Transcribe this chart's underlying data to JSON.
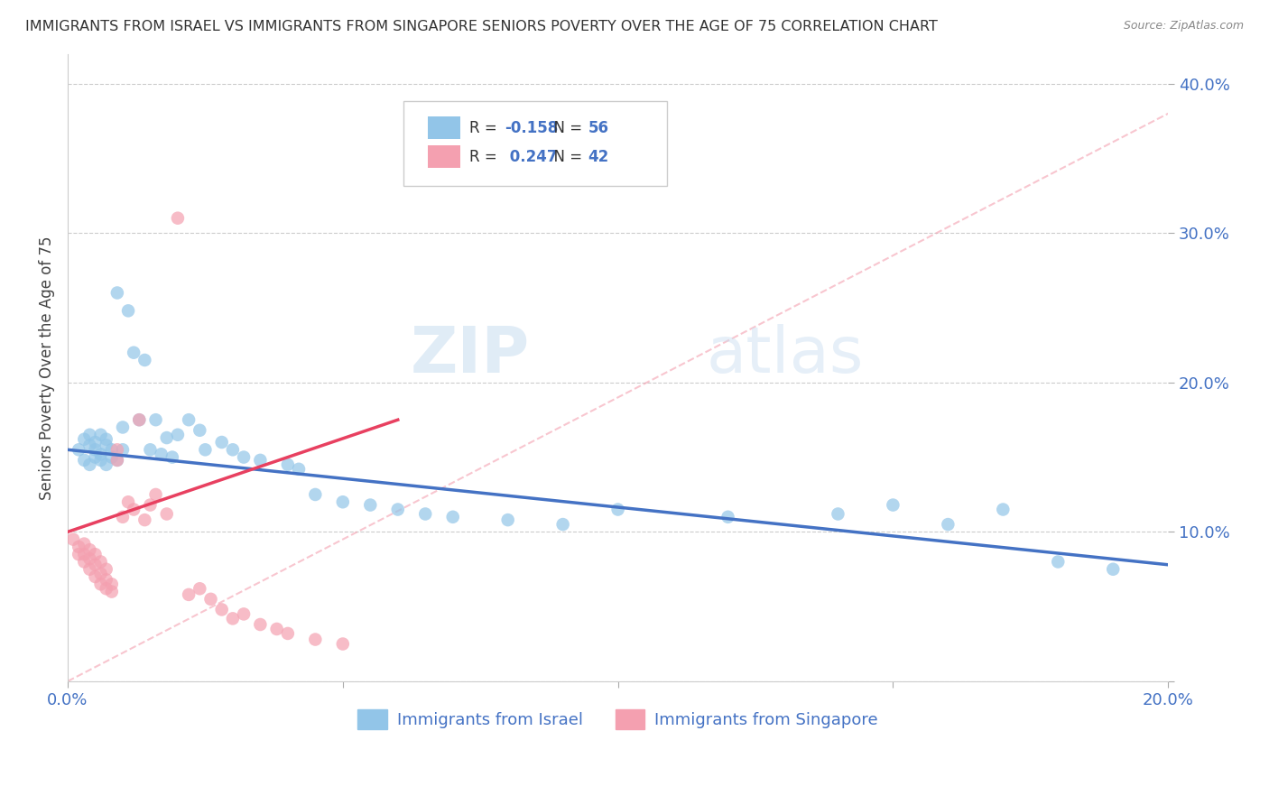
{
  "title": "IMMIGRANTS FROM ISRAEL VS IMMIGRANTS FROM SINGAPORE SENIORS POVERTY OVER THE AGE OF 75 CORRELATION CHART",
  "source": "Source: ZipAtlas.com",
  "ylabel": "Seniors Poverty Over the Age of 75",
  "xlim": [
    0.0,
    0.2
  ],
  "ylim": [
    0.0,
    0.42
  ],
  "x_tick_positions": [
    0.0,
    0.05,
    0.1,
    0.15,
    0.2
  ],
  "x_tick_labels": [
    "0.0%",
    "",
    "",
    "",
    "20.0%"
  ],
  "y_tick_positions": [
    0.0,
    0.1,
    0.2,
    0.3,
    0.4
  ],
  "y_tick_labels": [
    "",
    "10.0%",
    "20.0%",
    "30.0%",
    "40.0%"
  ],
  "legend_israel": "Immigrants from Israel",
  "legend_singapore": "Immigrants from Singapore",
  "R_israel": -0.158,
  "N_israel": 56,
  "R_singapore": 0.247,
  "N_singapore": 42,
  "color_israel": "#92C5E8",
  "color_singapore": "#F4A0B0",
  "line_color_israel": "#4472C4",
  "line_color_singapore": "#E84060",
  "diag_line_color": "#F4A0B0",
  "watermark_zip": "ZIP",
  "watermark_atlas": "atlas",
  "israel_x": [
    0.002,
    0.003,
    0.003,
    0.004,
    0.004,
    0.004,
    0.005,
    0.005,
    0.005,
    0.006,
    0.006,
    0.006,
    0.007,
    0.007,
    0.007,
    0.008,
    0.008,
    0.009,
    0.009,
    0.01,
    0.01,
    0.011,
    0.012,
    0.013,
    0.014,
    0.015,
    0.016,
    0.017,
    0.018,
    0.019,
    0.02,
    0.022,
    0.024,
    0.025,
    0.028,
    0.03,
    0.032,
    0.035,
    0.04,
    0.042,
    0.045,
    0.05,
    0.055,
    0.06,
    0.065,
    0.07,
    0.08,
    0.09,
    0.1,
    0.12,
    0.14,
    0.15,
    0.16,
    0.17,
    0.18,
    0.19
  ],
  "israel_y": [
    0.155,
    0.148,
    0.162,
    0.145,
    0.158,
    0.165,
    0.15,
    0.16,
    0.155,
    0.148,
    0.152,
    0.165,
    0.145,
    0.158,
    0.162,
    0.15,
    0.155,
    0.26,
    0.148,
    0.155,
    0.17,
    0.248,
    0.22,
    0.175,
    0.215,
    0.155,
    0.175,
    0.152,
    0.163,
    0.15,
    0.165,
    0.175,
    0.168,
    0.155,
    0.16,
    0.155,
    0.15,
    0.148,
    0.145,
    0.142,
    0.125,
    0.12,
    0.118,
    0.115,
    0.112,
    0.11,
    0.108,
    0.105,
    0.115,
    0.11,
    0.112,
    0.118,
    0.105,
    0.115,
    0.08,
    0.075
  ],
  "singapore_x": [
    0.001,
    0.002,
    0.002,
    0.003,
    0.003,
    0.003,
    0.004,
    0.004,
    0.004,
    0.005,
    0.005,
    0.005,
    0.006,
    0.006,
    0.006,
    0.007,
    0.007,
    0.007,
    0.008,
    0.008,
    0.009,
    0.009,
    0.01,
    0.011,
    0.012,
    0.013,
    0.014,
    0.015,
    0.016,
    0.018,
    0.02,
    0.022,
    0.024,
    0.026,
    0.028,
    0.03,
    0.032,
    0.035,
    0.038,
    0.04,
    0.045,
    0.05
  ],
  "singapore_y": [
    0.095,
    0.085,
    0.09,
    0.08,
    0.085,
    0.092,
    0.075,
    0.082,
    0.088,
    0.07,
    0.078,
    0.085,
    0.065,
    0.072,
    0.08,
    0.062,
    0.068,
    0.075,
    0.06,
    0.065,
    0.155,
    0.148,
    0.11,
    0.12,
    0.115,
    0.175,
    0.108,
    0.118,
    0.125,
    0.112,
    0.31,
    0.058,
    0.062,
    0.055,
    0.048,
    0.042,
    0.045,
    0.038,
    0.035,
    0.032,
    0.028,
    0.025
  ],
  "israel_line_x": [
    0.0,
    0.2
  ],
  "israel_line_y": [
    0.155,
    0.078
  ],
  "singapore_line_x": [
    0.0,
    0.06
  ],
  "singapore_line_y": [
    0.1,
    0.175
  ],
  "diag_line_x": [
    0.0,
    0.2
  ],
  "diag_line_y": [
    0.0,
    0.38
  ]
}
